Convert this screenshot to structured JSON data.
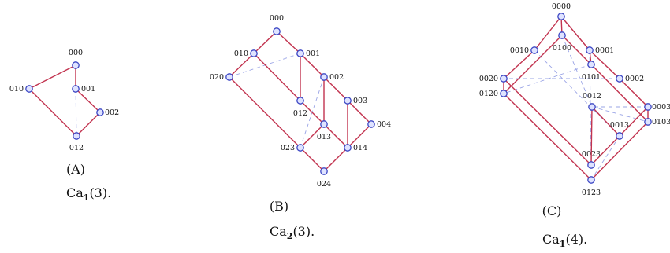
{
  "figures": [
    {
      "id": "a",
      "tag": "(A)",
      "caption": {
        "base": "Ca",
        "sub": "1",
        "arg": "(3)."
      },
      "nodes": [
        "000",
        "010",
        "001",
        "002",
        "012"
      ],
      "edges": [
        [
          "000",
          "010"
        ],
        [
          "000",
          "001"
        ],
        [
          "001",
          "002"
        ],
        [
          "010",
          "012"
        ],
        [
          "002",
          "012"
        ]
      ],
      "dashed": [
        [
          "001",
          "012"
        ]
      ]
    },
    {
      "id": "b",
      "tag": "(B)",
      "caption": {
        "base": "Ca",
        "sub": "2",
        "arg": "(3)."
      },
      "nodes": [
        "000",
        "010",
        "001",
        "020",
        "002",
        "012",
        "003",
        "013",
        "004",
        "023",
        "014",
        "024"
      ],
      "edges": [
        [
          "000",
          "010"
        ],
        [
          "000",
          "001"
        ],
        [
          "010",
          "020"
        ],
        [
          "010",
          "012"
        ],
        [
          "001",
          "012"
        ],
        [
          "001",
          "002"
        ],
        [
          "020",
          "023"
        ],
        [
          "012",
          "013"
        ],
        [
          "002",
          "013"
        ],
        [
          "002",
          "003"
        ],
        [
          "023",
          "024"
        ],
        [
          "013",
          "023"
        ],
        [
          "013",
          "014"
        ],
        [
          "003",
          "014"
        ],
        [
          "003",
          "004"
        ],
        [
          "004",
          "014"
        ],
        [
          "014",
          "024"
        ]
      ],
      "dashed": [
        [
          "001",
          "020"
        ],
        [
          "002",
          "023"
        ]
      ]
    },
    {
      "id": "c",
      "tag": "(C)",
      "caption": {
        "base": "Ca",
        "sub": "1",
        "arg": "(4)."
      },
      "nodes": [
        "0000",
        "0100",
        "0010",
        "0001",
        "0020",
        "0101",
        "0002",
        "0120",
        "0012",
        "0003",
        "0013",
        "0103",
        "0023",
        "0123"
      ],
      "edges": [
        [
          "0000",
          "0010"
        ],
        [
          "0000",
          "0001"
        ],
        [
          "0000",
          "0100"
        ],
        [
          "0100",
          "0101"
        ],
        [
          "0100",
          "0120"
        ],
        [
          "0010",
          "0020"
        ],
        [
          "0001",
          "0101"
        ],
        [
          "0001",
          "0002"
        ],
        [
          "0020",
          "0120"
        ],
        [
          "0020",
          "0023"
        ],
        [
          "0002",
          "0003"
        ],
        [
          "0003",
          "0103"
        ],
        [
          "0003",
          "0023"
        ],
        [
          "0101",
          "0103"
        ],
        [
          "0120",
          "0123"
        ],
        [
          "0103",
          "0123"
        ],
        [
          "0012",
          "0013"
        ],
        [
          "0012",
          "0023"
        ]
      ],
      "dashed": [
        [
          "0010",
          "0013"
        ],
        [
          "0001",
          "0023"
        ],
        [
          "0100",
          "0012"
        ],
        [
          "0101",
          "0120"
        ],
        [
          "0002",
          "0020"
        ],
        [
          "0012",
          "0103"
        ],
        [
          "0013",
          "0123"
        ],
        [
          "0003",
          "0012"
        ]
      ]
    }
  ]
}
